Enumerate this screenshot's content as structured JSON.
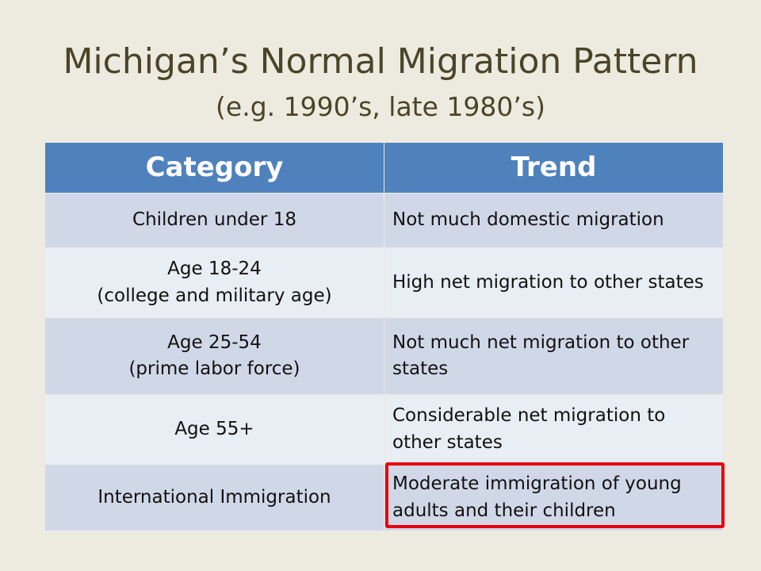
{
  "header": {
    "title": "Michigan’s Normal Migration Pattern",
    "subtitle": "(e.g. 1990’s, late 1980’s)"
  },
  "table": {
    "columns": [
      "Category",
      "Trend"
    ],
    "rows": [
      [
        "Children under 18",
        "Not much domestic migration"
      ],
      [
        "Age 18-24\n(college and military age)",
        "High net migration to other states"
      ],
      [
        "Age 25-54\n(prime labor force)",
        "Not much net migration to other states"
      ],
      [
        "Age 55+",
        "Considerable net migration to other states"
      ],
      [
        "International Immigration",
        "Moderate immigration of young adults and their children"
      ]
    ]
  }
}
